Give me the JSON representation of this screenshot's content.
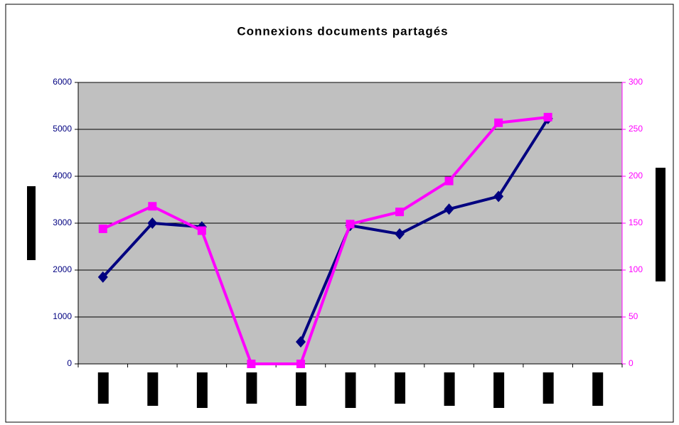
{
  "chart_data": {
    "type": "line",
    "title": "Connexions documents partagés",
    "categories": [
      null,
      null,
      null,
      null,
      null,
      null,
      null,
      null,
      null,
      null,
      null
    ],
    "series": [
      {
        "name": null,
        "color": "#000080",
        "axis": "y",
        "values": [
          1850,
          3000,
          2920,
          null,
          470,
          2950,
          2770,
          3300,
          3570,
          5230,
          null
        ]
      },
      {
        "name": null,
        "color": "#ff00ff",
        "axis": "y2",
        "values": [
          144,
          168,
          142,
          0,
          0,
          149,
          162,
          195,
          257,
          263,
          null
        ]
      }
    ],
    "ylim": [
      0,
      6000
    ],
    "yticks": [
      0,
      1000,
      2000,
      3000,
      4000,
      5000,
      6000
    ],
    "y2lim": [
      0,
      300
    ],
    "y2ticks": [
      0,
      50,
      100,
      150,
      200,
      250,
      300
    ],
    "grid": true,
    "plot_background": "#c0c0c0"
  }
}
